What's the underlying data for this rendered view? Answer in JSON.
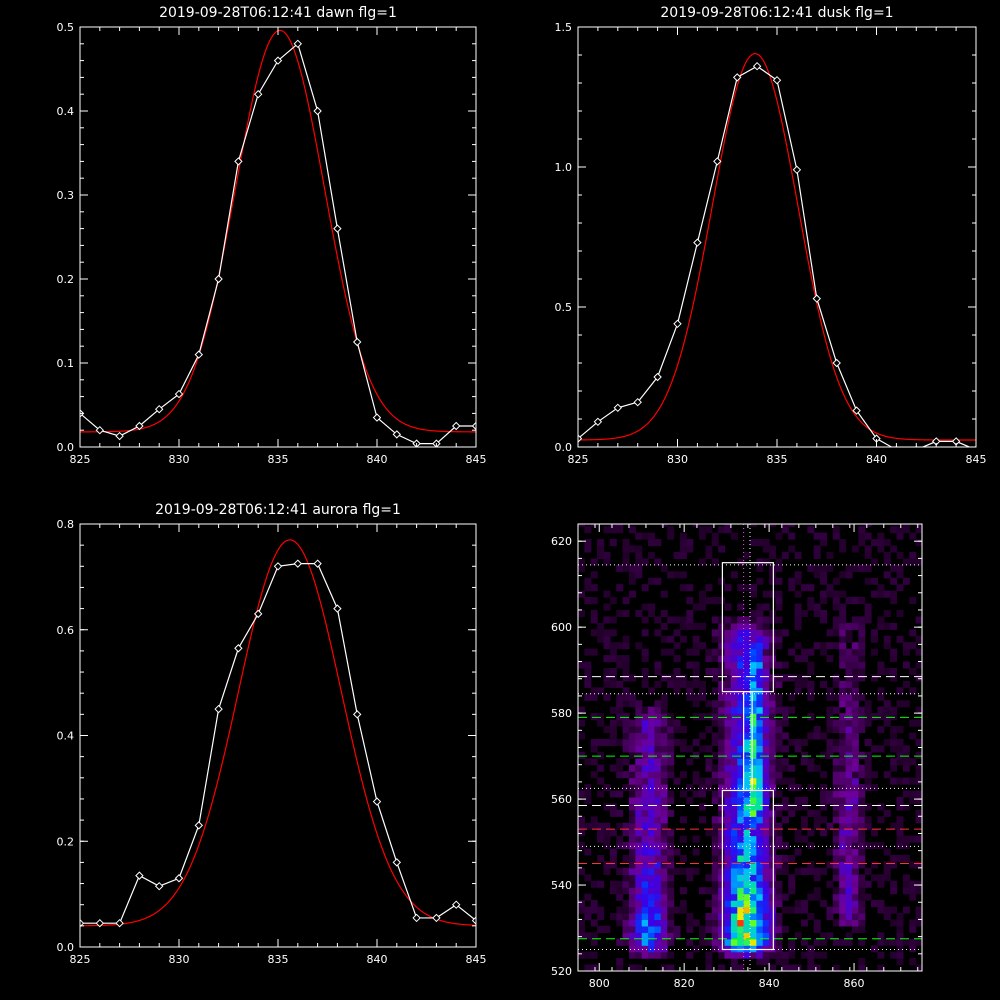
{
  "chart_data": [
    {
      "type": "line",
      "title": "2019-09-28T06:12:41 dawn flg=1",
      "xlim": [
        825,
        845
      ],
      "ylim": [
        0,
        0.5
      ],
      "xticks": [
        825,
        830,
        835,
        840,
        845
      ],
      "yticks": [
        0.0,
        0.1,
        0.2,
        0.3,
        0.4,
        0.5
      ],
      "ytick_labels": [
        "0.0",
        "0.1",
        "0.2",
        "0.3",
        "0.4",
        "0.5"
      ],
      "series": [
        {
          "kind": "data",
          "color": "#ffffff",
          "marker": "diamond",
          "x": [
            825,
            826,
            827,
            828,
            829,
            830,
            831,
            832,
            833,
            834,
            835,
            836,
            837,
            838,
            839,
            840,
            841,
            842,
            843,
            844,
            845
          ],
          "y": [
            0.04,
            0.02,
            0.013,
            0.025,
            0.045,
            0.063,
            0.11,
            0.2,
            0.34,
            0.42,
            0.46,
            0.48,
            0.4,
            0.26,
            0.125,
            0.035,
            0.015,
            0.004,
            0.004,
            0.025,
            0.025
          ]
        },
        {
          "kind": "fit",
          "color": "#ff0000",
          "gaussian": {
            "amplitude": 0.478,
            "center": 835.1,
            "sigma": 2.25,
            "baseline": 0.018
          }
        }
      ]
    },
    {
      "type": "line",
      "title": "2019-09-28T06:12:41 dusk flg=1",
      "xlim": [
        825,
        845
      ],
      "ylim": [
        0,
        1.5
      ],
      "xticks": [
        825,
        830,
        835,
        840,
        845
      ],
      "yticks": [
        0.0,
        0.5,
        1.0,
        1.5
      ],
      "ytick_labels": [
        "0.0",
        "0.5",
        "1.0",
        "1.5"
      ],
      "series": [
        {
          "kind": "data",
          "color": "#ffffff",
          "marker": "diamond",
          "x": [
            825,
            826,
            827,
            828,
            829,
            830,
            831,
            832,
            833,
            834,
            835,
            836,
            837,
            838,
            839,
            840,
            841,
            842,
            843,
            844,
            845
          ],
          "y": [
            0.03,
            0.09,
            0.14,
            0.16,
            0.25,
            0.44,
            0.73,
            1.02,
            1.32,
            1.36,
            1.31,
            0.99,
            0.53,
            0.3,
            0.13,
            0.03,
            -0.01,
            -0.01,
            0.02,
            0.02,
            -0.01
          ]
        },
        {
          "kind": "fit",
          "color": "#ff0000",
          "gaussian": {
            "amplitude": 1.38,
            "center": 833.9,
            "sigma": 2.15,
            "baseline": 0.025
          }
        }
      ]
    },
    {
      "type": "line",
      "title": "2019-09-28T06:12:41 aurora flg=1",
      "xlim": [
        825,
        845
      ],
      "ylim": [
        0,
        0.8
      ],
      "xticks": [
        825,
        830,
        835,
        840,
        845
      ],
      "yticks": [
        0.0,
        0.2,
        0.4,
        0.6,
        0.8
      ],
      "ytick_labels": [
        "0.0",
        "0.2",
        "0.4",
        "0.6",
        "0.8"
      ],
      "series": [
        {
          "kind": "data",
          "color": "#ffffff",
          "marker": "diamond",
          "x": [
            825,
            826,
            827,
            828,
            829,
            830,
            831,
            832,
            833,
            834,
            835,
            836,
            837,
            838,
            839,
            840,
            841,
            842,
            843,
            844,
            845
          ],
          "y": [
            0.045,
            0.045,
            0.045,
            0.135,
            0.115,
            0.13,
            0.23,
            0.45,
            0.565,
            0.63,
            0.72,
            0.725,
            0.725,
            0.64,
            0.44,
            0.275,
            0.16,
            0.055,
            0.055,
            0.08,
            0.05
          ]
        },
        {
          "kind": "fit",
          "color": "#ff0000",
          "gaussian": {
            "amplitude": 0.73,
            "center": 835.6,
            "sigma": 2.6,
            "baseline": 0.04
          }
        }
      ]
    },
    {
      "type": "heatmap",
      "title": "",
      "xlim": [
        795,
        876
      ],
      "ylim": [
        520,
        624
      ],
      "xticks": [
        800,
        820,
        840,
        860
      ],
      "yticks": [
        520,
        540,
        560,
        580,
        600,
        620
      ],
      "ytick_labels": [
        "520",
        "540",
        "560",
        "580",
        "600",
        "620"
      ],
      "bands": [
        {
          "x_center": 811,
          "x_width": 4,
          "y_from": 524,
          "y_to": 580,
          "peak": 0.55,
          "peak_y": 527
        },
        {
          "x_center": 834,
          "x_width": 5,
          "y_from": 524,
          "y_to": 600,
          "peak": 1.0,
          "peak_y": 528
        },
        {
          "x_center": 836,
          "x_width": 2,
          "y_from": 555,
          "y_to": 595,
          "peak": 0.45,
          "peak_y": 565
        },
        {
          "x_center": 858,
          "x_width": 3,
          "y_from": 530,
          "y_to": 600,
          "peak": 0.22,
          "peak_y": 560
        }
      ],
      "boxes": [
        {
          "x": [
            829,
            841
          ],
          "y": [
            525,
            562
          ],
          "color": "#ffffff"
        },
        {
          "x": [
            834,
            836
          ],
          "y": [
            562,
            585
          ],
          "color": "#ffffff"
        },
        {
          "x": [
            829,
            841
          ],
          "y": [
            585,
            615
          ],
          "color": "#ffffff"
        }
      ],
      "hlines": [
        {
          "y": 527.5,
          "color": "#00ff00",
          "style": "dashed"
        },
        {
          "y": 545,
          "color": "#ff3030",
          "style": "dashed"
        },
        {
          "y": 553,
          "color": "#ff3030",
          "style": "dashed"
        },
        {
          "y": 558.5,
          "color": "#ffffff",
          "style": "dashed"
        },
        {
          "y": 570,
          "color": "#00ff00",
          "style": "dashed"
        },
        {
          "y": 579,
          "color": "#00ff00",
          "style": "dashed"
        },
        {
          "y": 588.5,
          "color": "#ffffff",
          "style": "dashed"
        },
        {
          "y": 525,
          "color": "#ffffff",
          "style": "dotted"
        },
        {
          "y": 549,
          "color": "#ffffff",
          "style": "dotted"
        },
        {
          "y": 562.5,
          "color": "#ffffff",
          "style": "dotted"
        },
        {
          "y": 584.5,
          "color": "#ffffff",
          "style": "dotted"
        },
        {
          "y": 614.5,
          "color": "#ffffff",
          "style": "dotted"
        }
      ],
      "vlines": [
        {
          "x": 834,
          "color": "#ff40ff",
          "style": "dotted"
        },
        {
          "x": 835.5,
          "color": "#ffffff",
          "style": "dotted"
        }
      ]
    }
  ]
}
